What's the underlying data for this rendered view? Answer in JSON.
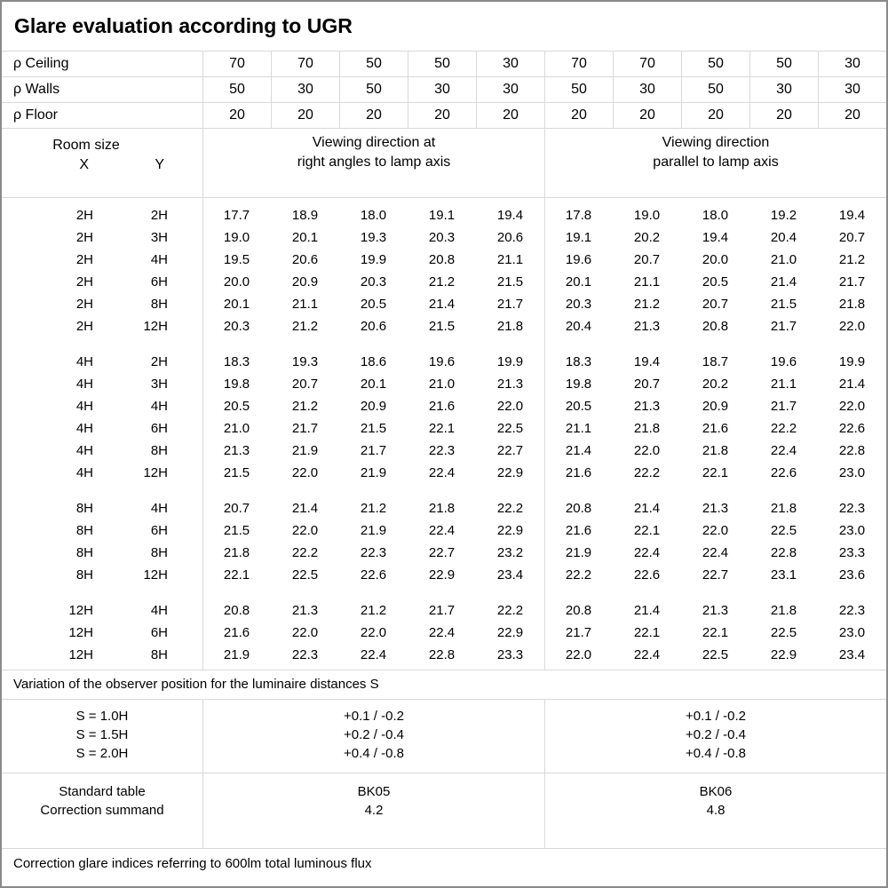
{
  "title": "Glare evaluation according to UGR",
  "reflectance_rows": [
    {
      "label": "ρ Ceiling",
      "values": [
        "70",
        "70",
        "50",
        "50",
        "30",
        "70",
        "70",
        "50",
        "50",
        "30"
      ]
    },
    {
      "label": "ρ Walls",
      "values": [
        "50",
        "30",
        "50",
        "30",
        "30",
        "50",
        "30",
        "50",
        "30",
        "30"
      ]
    },
    {
      "label": "ρ Floor",
      "values": [
        "20",
        "20",
        "20",
        "20",
        "20",
        "20",
        "20",
        "20",
        "20",
        "20"
      ]
    }
  ],
  "header": {
    "room_size_label": "Room size",
    "x_label": "X",
    "y_label": "Y",
    "right_angles_line1": "Viewing direction at",
    "right_angles_line2": "right angles to lamp axis",
    "parallel_line1": "Viewing direction",
    "parallel_line2": "parallel to lamp axis"
  },
  "ugr_table": {
    "blocks": [
      {
        "rows": [
          {
            "x": "2H",
            "y": "2H",
            "right_angles": [
              "17.7",
              "18.9",
              "18.0",
              "19.1",
              "19.4"
            ],
            "parallel": [
              "17.8",
              "19.0",
              "18.0",
              "19.2",
              "19.4"
            ]
          },
          {
            "x": "2H",
            "y": "3H",
            "right_angles": [
              "19.0",
              "20.1",
              "19.3",
              "20.3",
              "20.6"
            ],
            "parallel": [
              "19.1",
              "20.2",
              "19.4",
              "20.4",
              "20.7"
            ]
          },
          {
            "x": "2H",
            "y": "4H",
            "right_angles": [
              "19.5",
              "20.6",
              "19.9",
              "20.8",
              "21.1"
            ],
            "parallel": [
              "19.6",
              "20.7",
              "20.0",
              "21.0",
              "21.2"
            ]
          },
          {
            "x": "2H",
            "y": "6H",
            "right_angles": [
              "20.0",
              "20.9",
              "20.3",
              "21.2",
              "21.5"
            ],
            "parallel": [
              "20.1",
              "21.1",
              "20.5",
              "21.4",
              "21.7"
            ]
          },
          {
            "x": "2H",
            "y": "8H",
            "right_angles": [
              "20.1",
              "21.1",
              "20.5",
              "21.4",
              "21.7"
            ],
            "parallel": [
              "20.3",
              "21.2",
              "20.7",
              "21.5",
              "21.8"
            ]
          },
          {
            "x": "2H",
            "y": "12H",
            "right_angles": [
              "20.3",
              "21.2",
              "20.6",
              "21.5",
              "21.8"
            ],
            "parallel": [
              "20.4",
              "21.3",
              "20.8",
              "21.7",
              "22.0"
            ]
          }
        ]
      },
      {
        "rows": [
          {
            "x": "4H",
            "y": "2H",
            "right_angles": [
              "18.3",
              "19.3",
              "18.6",
              "19.6",
              "19.9"
            ],
            "parallel": [
              "18.3",
              "19.4",
              "18.7",
              "19.6",
              "19.9"
            ]
          },
          {
            "x": "4H",
            "y": "3H",
            "right_angles": [
              "19.8",
              "20.7",
              "20.1",
              "21.0",
              "21.3"
            ],
            "parallel": [
              "19.8",
              "20.7",
              "20.2",
              "21.1",
              "21.4"
            ]
          },
          {
            "x": "4H",
            "y": "4H",
            "right_angles": [
              "20.5",
              "21.2",
              "20.9",
              "21.6",
              "22.0"
            ],
            "parallel": [
              "20.5",
              "21.3",
              "20.9",
              "21.7",
              "22.0"
            ]
          },
          {
            "x": "4H",
            "y": "6H",
            "right_angles": [
              "21.0",
              "21.7",
              "21.5",
              "22.1",
              "22.5"
            ],
            "parallel": [
              "21.1",
              "21.8",
              "21.6",
              "22.2",
              "22.6"
            ]
          },
          {
            "x": "4H",
            "y": "8H",
            "right_angles": [
              "21.3",
              "21.9",
              "21.7",
              "22.3",
              "22.7"
            ],
            "parallel": [
              "21.4",
              "22.0",
              "21.8",
              "22.4",
              "22.8"
            ]
          },
          {
            "x": "4H",
            "y": "12H",
            "right_angles": [
              "21.5",
              "22.0",
              "21.9",
              "22.4",
              "22.9"
            ],
            "parallel": [
              "21.6",
              "22.2",
              "22.1",
              "22.6",
              "23.0"
            ]
          }
        ]
      },
      {
        "rows": [
          {
            "x": "8H",
            "y": "4H",
            "right_angles": [
              "20.7",
              "21.4",
              "21.2",
              "21.8",
              "22.2"
            ],
            "parallel": [
              "20.8",
              "21.4",
              "21.3",
              "21.8",
              "22.3"
            ]
          },
          {
            "x": "8H",
            "y": "6H",
            "right_angles": [
              "21.5",
              "22.0",
              "21.9",
              "22.4",
              "22.9"
            ],
            "parallel": [
              "21.6",
              "22.1",
              "22.0",
              "22.5",
              "23.0"
            ]
          },
          {
            "x": "8H",
            "y": "8H",
            "right_angles": [
              "21.8",
              "22.2",
              "22.3",
              "22.7",
              "23.2"
            ],
            "parallel": [
              "21.9",
              "22.4",
              "22.4",
              "22.8",
              "23.3"
            ]
          },
          {
            "x": "8H",
            "y": "12H",
            "right_angles": [
              "22.1",
              "22.5",
              "22.6",
              "22.9",
              "23.4"
            ],
            "parallel": [
              "22.2",
              "22.6",
              "22.7",
              "23.1",
              "23.6"
            ]
          }
        ]
      },
      {
        "rows": [
          {
            "x": "12H",
            "y": "4H",
            "right_angles": [
              "20.8",
              "21.3",
              "21.2",
              "21.7",
              "22.2"
            ],
            "parallel": [
              "20.8",
              "21.4",
              "21.3",
              "21.8",
              "22.3"
            ]
          },
          {
            "x": "12H",
            "y": "6H",
            "right_angles": [
              "21.6",
              "22.0",
              "22.0",
              "22.4",
              "22.9"
            ],
            "parallel": [
              "21.7",
              "22.1",
              "22.1",
              "22.5",
              "23.0"
            ]
          },
          {
            "x": "12H",
            "y": "8H",
            "right_angles": [
              "21.9",
              "22.3",
              "22.4",
              "22.8",
              "23.3"
            ],
            "parallel": [
              "22.0",
              "22.4",
              "22.5",
              "22.9",
              "23.4"
            ]
          }
        ]
      }
    ]
  },
  "variation_note": "Variation of the observer position for the luminaire distances S",
  "spacing_correction": {
    "labels": [
      "S = 1.0H",
      "S = 1.5H",
      "S = 2.0H"
    ],
    "right_angles": [
      "+0.1 / -0.2",
      "+0.2 / -0.4",
      "+0.4 / -0.8"
    ],
    "parallel": [
      "+0.1 / -0.2",
      "+0.2 / -0.4",
      "+0.4 / -0.8"
    ]
  },
  "standard_info": {
    "labels": [
      "Standard table",
      "Correction summand"
    ],
    "right_angles": [
      "BK05",
      "4.2"
    ],
    "parallel": [
      "BK06",
      "4.8"
    ]
  },
  "footer_note": "Correction glare indices referring to 600lm total luminous flux",
  "colors": {
    "grid_line": "#d9d9d9",
    "outer_border": "#8a8a8a",
    "text": "#000000",
    "background": "#ffffff"
  }
}
